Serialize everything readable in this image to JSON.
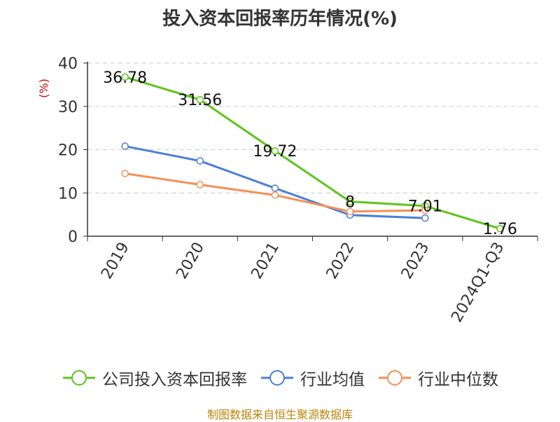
{
  "chart_data": {
    "type": "line",
    "title": "投入资本回报率历年情况(%)",
    "ylabel": "(%)",
    "xlabel": "",
    "categories": [
      "2019",
      "2020",
      "2021",
      "2022",
      "2023",
      "2024Q1-Q3"
    ],
    "y_ticks": [
      0,
      10,
      20,
      30,
      40
    ],
    "ylim": [
      0,
      40
    ],
    "grid": true,
    "legend_position": "bottom",
    "series": [
      {
        "name": "公司投入资本回报率",
        "color": "#5cc51a",
        "values": [
          36.78,
          31.56,
          19.72,
          8,
          7.01,
          1.76
        ],
        "labels": [
          "36.78",
          "31.56",
          "19.72",
          "8",
          "7.01",
          "1.76"
        ]
      },
      {
        "name": "行业均值",
        "color": "#4a7fd8",
        "values": [
          20.8,
          17.4,
          11.1,
          4.9,
          4.2,
          null
        ]
      },
      {
        "name": "行业中位数",
        "color": "#f58f55",
        "values": [
          14.5,
          11.9,
          9.5,
          5.7,
          6.0,
          null
        ]
      }
    ]
  },
  "footer": {
    "source": "制图数据来自恒生聚源数据库"
  }
}
